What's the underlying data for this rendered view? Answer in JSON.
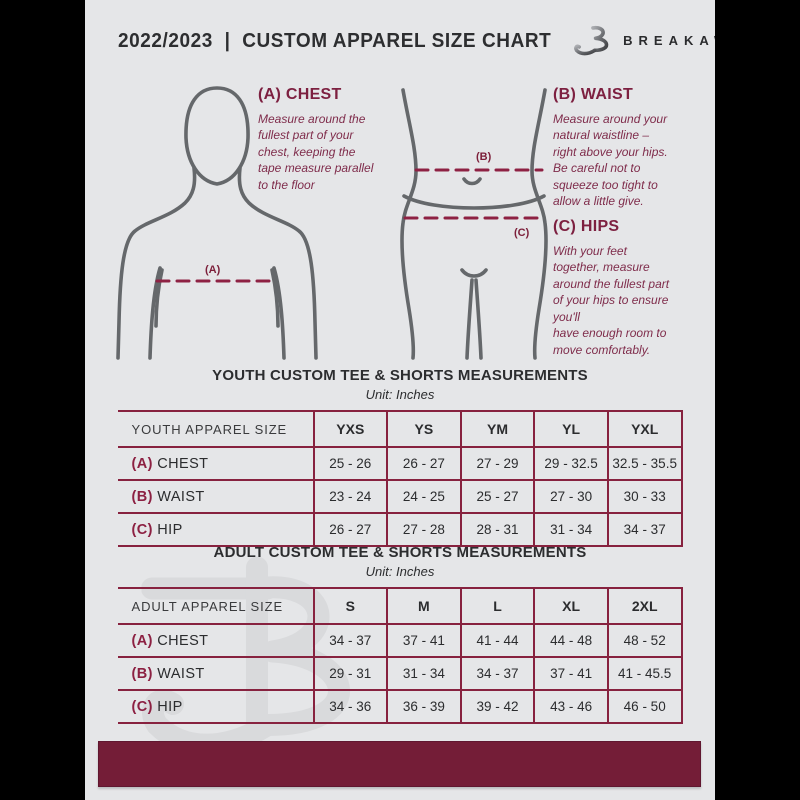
{
  "header": {
    "title": "2022/2023  |  CUSTOM APPAREL SIZE CHART",
    "brand": "BREAKAWAY",
    "logo_letter": "B"
  },
  "guide": {
    "chest": {
      "heading": "(A) CHEST",
      "marker": "(A)",
      "body": "Measure around the\nfullest part of your\nchest, keeping the\ntape measure parallel\nto the floor"
    },
    "waist": {
      "heading": "(B) WAIST",
      "marker": "(B)",
      "body": "Measure around your\nnatural waistline –\nright above your hips.\nBe careful not to\nsqueeze too tight to\nallow a little give."
    },
    "hips": {
      "heading": "(C) HIPS",
      "marker": "(C)",
      "body": "With your feet\ntogether, measure\naround the fullest part\nof your hips to ensure\nyou'll\nhave enough room to\nmove comfortably."
    }
  },
  "watermark_letter": "B",
  "colors": {
    "page_bg": "#e5e6e8",
    "maroon_border": "#87223f",
    "maroon_footer": "#741d37",
    "maroon_heading": "#7d2040",
    "figure_gray": "#65686b",
    "dark_text": "#2c2d2f"
  },
  "chart_data": [
    {
      "type": "table",
      "title": "YOUTH CUSTOM TEE & SHORTS MEASUREMENTS",
      "subtitle": "Unit: Inches",
      "columns": [
        "YOUTH APPAREL SIZE",
        "YXS",
        "YS",
        "YM",
        "YL",
        "YXL"
      ],
      "rows": [
        {
          "marker": "(A)",
          "label": "CHEST",
          "values": [
            "25 - 26",
            "26 - 27",
            "27 - 29",
            "29 - 32.5",
            "32.5 - 35.5"
          ]
        },
        {
          "marker": "(B)",
          "label": "WAIST",
          "values": [
            "23 - 24",
            "24 - 25",
            "25 - 27",
            "27 - 30",
            "30 - 33"
          ]
        },
        {
          "marker": "(C)",
          "label": "HIP",
          "values": [
            "26 - 27",
            "27 - 28",
            "28 - 31",
            "31 - 34",
            "34 - 37"
          ]
        }
      ]
    },
    {
      "type": "table",
      "title": "ADULT CUSTOM TEE & SHORTS MEASUREMENTS",
      "subtitle": "Unit: Inches",
      "columns": [
        "ADULT APPAREL SIZE",
        "S",
        "M",
        "L",
        "XL",
        "2XL"
      ],
      "rows": [
        {
          "marker": "(A)",
          "label": "CHEST",
          "values": [
            "34 - 37",
            "37 - 41",
            "41 - 44",
            "44 - 48",
            "48 - 52"
          ]
        },
        {
          "marker": "(B)",
          "label": "WAIST",
          "values": [
            "29 - 31",
            "31 - 34",
            "34 - 37",
            "37 - 41",
            "41 - 45.5"
          ]
        },
        {
          "marker": "(C)",
          "label": "HIP",
          "values": [
            "34 - 36",
            "36 - 39",
            "39 - 42",
            "43 - 46",
            "46 - 50"
          ]
        }
      ]
    }
  ]
}
